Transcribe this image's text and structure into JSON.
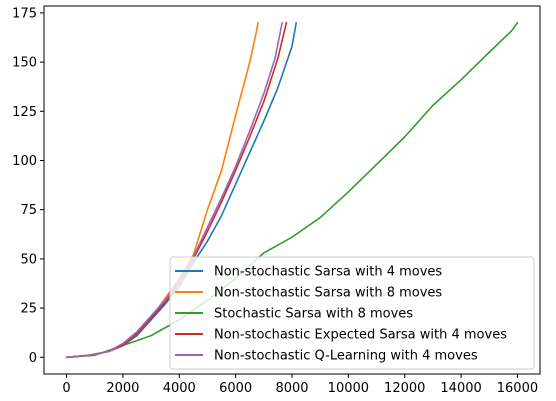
{
  "chart_data": {
    "type": "line",
    "title": "",
    "xlabel": "",
    "ylabel": "",
    "xlim": [
      -800,
      16800
    ],
    "ylim": [
      -8.5,
      178.5
    ],
    "xticks": [
      0,
      2000,
      4000,
      6000,
      8000,
      10000,
      12000,
      14000,
      16000
    ],
    "yticks": [
      0,
      25,
      50,
      75,
      100,
      125,
      150,
      175
    ],
    "grid": false,
    "legend_position": "lower right",
    "series": [
      {
        "name": "Non-stochastic Sarsa with 4 moves",
        "color": "#1f77b4",
        "points": [
          [
            0,
            0
          ],
          [
            800,
            1
          ],
          [
            1500,
            3
          ],
          [
            2000,
            6
          ],
          [
            2500,
            11
          ],
          [
            3000,
            19
          ],
          [
            3500,
            27
          ],
          [
            4000,
            36
          ],
          [
            4500,
            48
          ],
          [
            5000,
            59
          ],
          [
            5500,
            72
          ],
          [
            6000,
            88
          ],
          [
            6500,
            104
          ],
          [
            7000,
            120
          ],
          [
            7500,
            137
          ],
          [
            8000,
            158
          ],
          [
            8150,
            170
          ]
        ]
      },
      {
        "name": "Non-stochastic Sarsa with 8 moves",
        "color": "#ff7f0e",
        "points": [
          [
            0,
            0
          ],
          [
            800,
            1
          ],
          [
            1500,
            3
          ],
          [
            2000,
            6
          ],
          [
            2500,
            12
          ],
          [
            3000,
            20
          ],
          [
            3500,
            30
          ],
          [
            4000,
            40
          ],
          [
            4500,
            52
          ],
          [
            5000,
            75
          ],
          [
            5500,
            95
          ],
          [
            6000,
            123
          ],
          [
            6500,
            150
          ],
          [
            6700,
            163
          ],
          [
            6800,
            170
          ]
        ]
      },
      {
        "name": "Stochastic Sarsa with 8 moves",
        "color": "#2ca02c",
        "points": [
          [
            0,
            0
          ],
          [
            1000,
            1
          ],
          [
            2000,
            6
          ],
          [
            3000,
            11
          ],
          [
            4000,
            19
          ],
          [
            5000,
            29
          ],
          [
            6000,
            40
          ],
          [
            7000,
            53
          ],
          [
            8000,
            61
          ],
          [
            9000,
            71
          ],
          [
            10000,
            84
          ],
          [
            11000,
            98
          ],
          [
            12000,
            112
          ],
          [
            13000,
            128
          ],
          [
            14000,
            141
          ],
          [
            15000,
            155
          ],
          [
            15800,
            166
          ],
          [
            16000,
            170
          ]
        ]
      },
      {
        "name": "Non-stochastic Expected Sarsa with 4 moves",
        "color": "#d62728",
        "points": [
          [
            0,
            0
          ],
          [
            800,
            1
          ],
          [
            1500,
            3
          ],
          [
            2000,
            6
          ],
          [
            2500,
            12
          ],
          [
            3000,
            20
          ],
          [
            3500,
            28
          ],
          [
            4000,
            38
          ],
          [
            4500,
            50
          ],
          [
            5000,
            64
          ],
          [
            5500,
            79
          ],
          [
            6000,
            95
          ],
          [
            6500,
            112
          ],
          [
            7000,
            130
          ],
          [
            7500,
            152
          ],
          [
            7800,
            170
          ]
        ]
      },
      {
        "name": "Non-stochastic Q-Learning with 4 moves",
        "color": "#9467bd",
        "points": [
          [
            0,
            0
          ],
          [
            800,
            1
          ],
          [
            1500,
            3
          ],
          [
            2000,
            7
          ],
          [
            2500,
            13
          ],
          [
            3000,
            21
          ],
          [
            3500,
            29
          ],
          [
            4000,
            39
          ],
          [
            4500,
            51
          ],
          [
            5000,
            66
          ],
          [
            5500,
            81
          ],
          [
            6000,
            97
          ],
          [
            6500,
            115
          ],
          [
            7000,
            134
          ],
          [
            7400,
            152
          ],
          [
            7650,
            170
          ]
        ]
      }
    ]
  }
}
